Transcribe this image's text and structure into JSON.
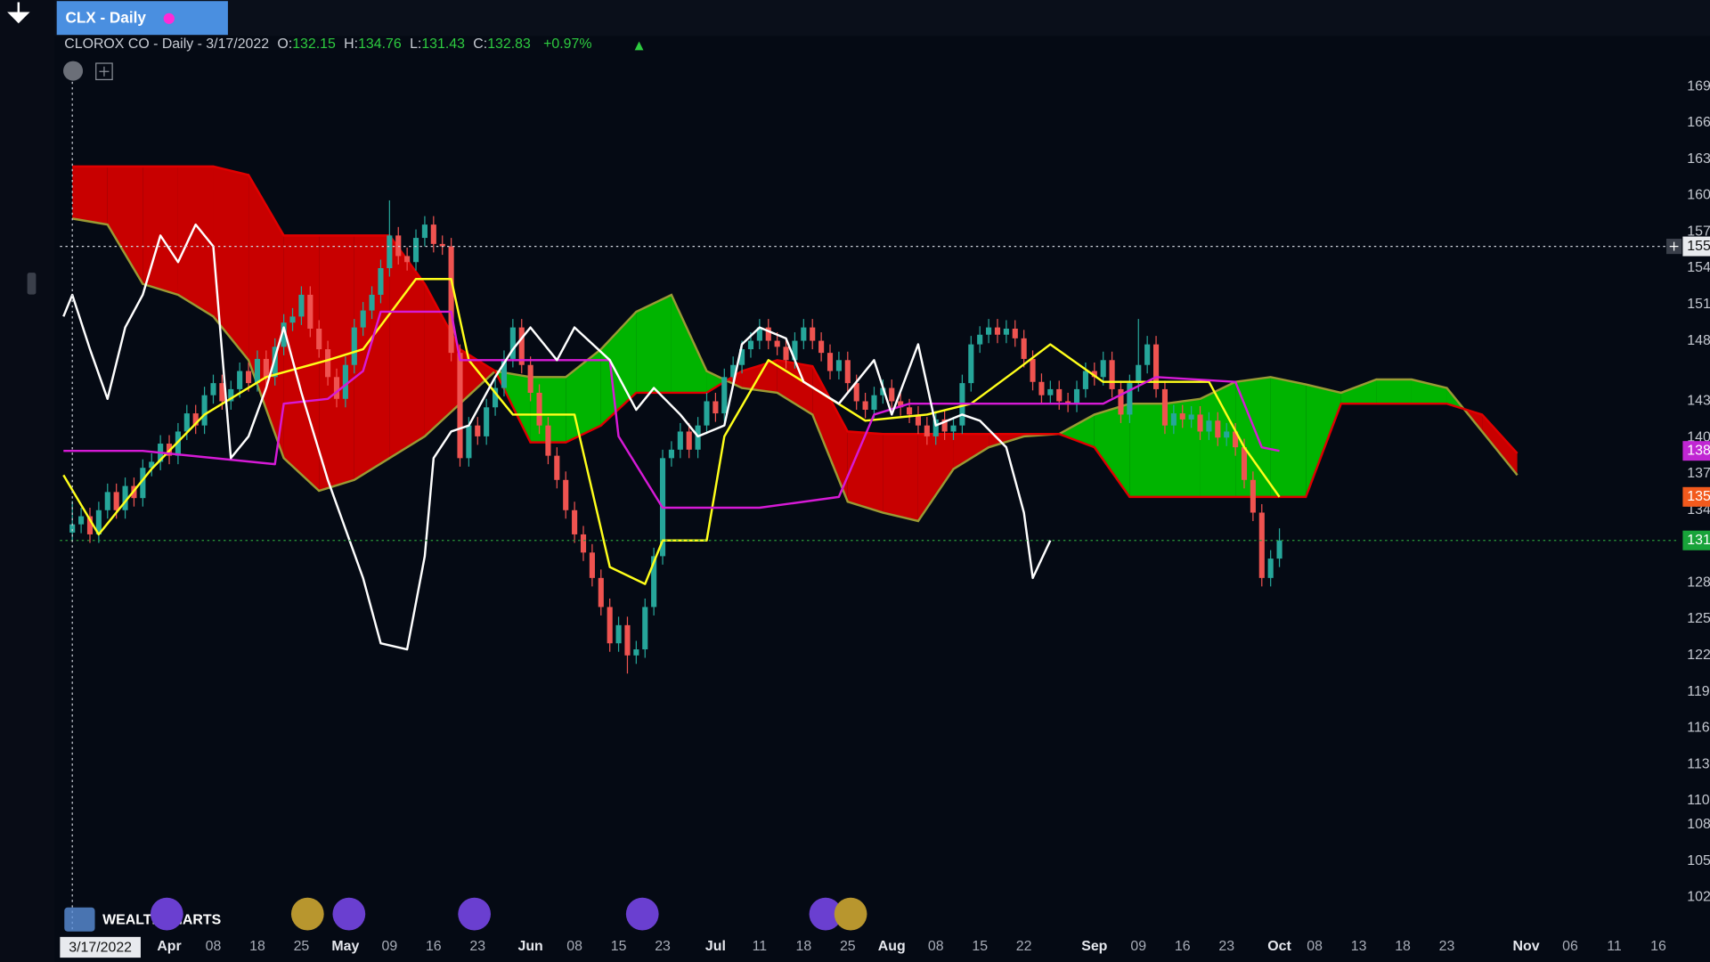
{
  "header": {
    "tab": "CLX - Daily",
    "legend": "CLOROX CO - Daily - 3/17/2022",
    "labels": [
      "O:",
      "H:",
      "L:",
      "C:"
    ],
    "change": "+0.97%",
    "watermark": "WEALTHCHARTS"
  },
  "chart_data": {
    "type": "candlestick",
    "xlim": [
      -1.4,
      182.4
    ],
    "ylim": [
      99.1,
      171.2
    ],
    "grid": false,
    "yticks": [
      102,
      105,
      108,
      110,
      113,
      116,
      119,
      122,
      125,
      128,
      134,
      137,
      140,
      143,
      148,
      151,
      154,
      157,
      160,
      163,
      166,
      169
    ],
    "xticks": [
      {
        "value": 11,
        "label": "Apr"
      },
      {
        "value": 16,
        "label": "08"
      },
      {
        "value": 21,
        "label": "18"
      },
      {
        "value": 26,
        "label": "25"
      },
      {
        "value": 31,
        "label": "May"
      },
      {
        "value": 36,
        "label": "09"
      },
      {
        "value": 41,
        "label": "16"
      },
      {
        "value": 46,
        "label": "23"
      },
      {
        "value": 52,
        "label": "Jun"
      },
      {
        "value": 57,
        "label": "08"
      },
      {
        "value": 62,
        "label": "15"
      },
      {
        "value": 67,
        "label": "23"
      },
      {
        "value": 73,
        "label": "Jul"
      },
      {
        "value": 78,
        "label": "11"
      },
      {
        "value": 83,
        "label": "18"
      },
      {
        "value": 88,
        "label": "25"
      },
      {
        "value": 93,
        "label": "Aug"
      },
      {
        "value": 98,
        "label": "08"
      },
      {
        "value": 103,
        "label": "15"
      },
      {
        "value": 108,
        "label": "22"
      },
      {
        "value": 116,
        "label": "Sep"
      },
      {
        "value": 121,
        "label": "09"
      },
      {
        "value": 126,
        "label": "16"
      },
      {
        "value": 131,
        "label": "23"
      },
      {
        "value": 137,
        "label": "Oct"
      },
      {
        "value": 141,
        "label": "08"
      },
      {
        "value": 146,
        "label": "13"
      },
      {
        "value": 151,
        "label": "18"
      },
      {
        "value": 156,
        "label": "23"
      },
      {
        "value": 165,
        "label": "Nov"
      },
      {
        "value": 170,
        "label": "06"
      },
      {
        "value": 175,
        "label": "11"
      },
      {
        "value": 180,
        "label": "16"
      }
    ],
    "crosshair": {
      "label": "3/17/2022",
      "x": 0,
      "value": 155.8
    },
    "candles": {
      "up_color": "#26a69a",
      "down_color": "#ef5350",
      "x": [
        0,
        1,
        2,
        3,
        4,
        5,
        6,
        7,
        8,
        9,
        10,
        11,
        12,
        13,
        14,
        15,
        16,
        17,
        18,
        19,
        20,
        21,
        22,
        23,
        24,
        25,
        26,
        27,
        28,
        29,
        30,
        31,
        32,
        33,
        34,
        35,
        36,
        37,
        38,
        39,
        40,
        41,
        42,
        43,
        44,
        45,
        46,
        47,
        48,
        49,
        50,
        51,
        52,
        53,
        54,
        55,
        56,
        57,
        58,
        59,
        60,
        61,
        62,
        63,
        64,
        65,
        66,
        67,
        68,
        69,
        70,
        71,
        72,
        73,
        74,
        75,
        76,
        77,
        78,
        79,
        80,
        81,
        82,
        83,
        84,
        85,
        86,
        87,
        88,
        89,
        90,
        91,
        92,
        93,
        94,
        95,
        96,
        97,
        98,
        99,
        100,
        101,
        102,
        103,
        104,
        105,
        106,
        107,
        108,
        109,
        110,
        111,
        112,
        113,
        114,
        115,
        116,
        117,
        118,
        119,
        120,
        121,
        122,
        123,
        124,
        125,
        126,
        127,
        128,
        129,
        130,
        131,
        132,
        133,
        134,
        135,
        136,
        137
      ],
      "open": [
        132.15,
        132.83,
        133.5,
        132.0,
        134.0,
        135.5,
        134.0,
        136.0,
        135.0,
        137.5,
        138.0,
        139.5,
        138.5,
        140.5,
        142.0,
        141.0,
        143.5,
        144.5,
        143.0,
        144.0,
        145.5,
        144.5,
        146.5,
        145.0,
        147.5,
        149.5,
        150.0,
        151.8,
        149.0,
        147.3,
        145.0,
        143.2,
        146.0,
        149.1,
        150.5,
        151.8,
        154.0,
        156.7,
        155.0,
        154.5,
        156.5,
        157.6,
        156.0,
        155.8,
        147.0,
        138.3,
        141.0,
        140.1,
        142.5,
        144.1,
        146.5,
        149.1,
        146.0,
        143.7,
        141.0,
        138.5,
        136.5,
        134.0,
        132.0,
        130.5,
        128.4,
        126.0,
        123.0,
        124.5,
        122.0,
        122.5,
        126.0,
        130.2,
        138.3,
        139.0,
        140.5,
        139.0,
        141.0,
        143.0,
        142.0,
        145.0,
        146.0,
        147.3,
        148.0,
        149.1,
        148.0,
        147.5,
        146.4,
        148.0,
        149.1,
        148.0,
        147.0,
        145.5,
        146.4,
        144.5,
        143.0,
        142.3,
        143.5,
        144.1,
        143.0,
        142.5,
        141.9,
        141.0,
        140.1,
        141.5,
        140.5,
        141.0,
        144.5,
        147.7,
        148.5,
        149.1,
        148.5,
        149.0,
        148.2,
        146.5,
        144.6,
        143.5,
        144.0,
        143.0,
        142.8,
        144.0,
        145.5,
        145.0,
        146.4,
        144.0,
        141.9,
        144.5,
        146.0,
        147.7,
        144.0,
        141.0,
        142.0,
        141.5,
        141.9,
        140.5,
        141.4,
        140.0,
        140.5,
        139.2,
        136.5,
        133.8,
        128.4,
        130.0
      ],
      "high": [
        134.76,
        134.2,
        134.2,
        134.7,
        136.2,
        136.2,
        136.7,
        136.7,
        138.2,
        138.7,
        140.2,
        140.2,
        141.2,
        142.7,
        142.7,
        144.2,
        145.2,
        145.2,
        144.7,
        146.2,
        146.2,
        147.2,
        147.2,
        148.2,
        150.2,
        150.7,
        152.5,
        152.5,
        149.7,
        148.0,
        145.7,
        146.7,
        149.8,
        151.2,
        152.5,
        154.7,
        159.6,
        157.4,
        155.7,
        157.2,
        158.3,
        158.3,
        156.7,
        156.5,
        147.7,
        141.7,
        141.7,
        143.2,
        144.8,
        147.2,
        149.8,
        149.8,
        146.7,
        144.4,
        141.7,
        139.2,
        137.2,
        134.7,
        132.7,
        131.2,
        129.1,
        126.7,
        125.2,
        125.2,
        123.2,
        126.7,
        130.9,
        139.0,
        139.7,
        141.2,
        141.2,
        141.7,
        143.7,
        143.7,
        145.7,
        146.7,
        148.0,
        148.7,
        149.8,
        149.8,
        148.7,
        148.2,
        148.7,
        149.8,
        149.8,
        148.7,
        147.7,
        147.1,
        147.1,
        145.2,
        143.7,
        144.2,
        144.8,
        144.8,
        143.7,
        143.2,
        142.6,
        141.7,
        142.2,
        142.2,
        141.7,
        145.2,
        148.4,
        149.2,
        149.8,
        149.8,
        149.7,
        149.7,
        148.9,
        147.2,
        145.3,
        144.7,
        144.7,
        143.7,
        144.7,
        146.2,
        146.2,
        147.1,
        147.1,
        144.7,
        145.2,
        149.8,
        148.4,
        148.4,
        144.7,
        142.7,
        142.7,
        142.6,
        142.6,
        142.1,
        142.1,
        141.2,
        141.2,
        139.9,
        137.2,
        134.5,
        130.7,
        132.5
      ],
      "low": [
        131.43,
        132.1,
        131.3,
        131.3,
        133.3,
        133.3,
        133.3,
        134.3,
        134.3,
        136.8,
        137.3,
        137.8,
        137.8,
        139.8,
        140.3,
        140.3,
        142.8,
        142.3,
        142.3,
        143.3,
        143.8,
        143.8,
        144.3,
        144.3,
        146.8,
        148.8,
        149.3,
        148.3,
        146.6,
        144.3,
        142.5,
        142.5,
        145.3,
        148.4,
        149.8,
        151.1,
        153.3,
        154.3,
        153.8,
        153.8,
        155.8,
        155.3,
        155.1,
        146.3,
        137.6,
        137.6,
        139.4,
        139.4,
        141.8,
        143.4,
        145.8,
        145.3,
        143.0,
        140.3,
        137.8,
        135.8,
        133.3,
        131.3,
        129.8,
        127.7,
        125.3,
        122.3,
        122.3,
        120.5,
        121.3,
        121.8,
        125.3,
        129.5,
        137.6,
        138.3,
        138.3,
        138.3,
        140.3,
        141.3,
        141.3,
        144.3,
        145.3,
        146.6,
        147.3,
        147.3,
        146.8,
        145.7,
        145.7,
        147.3,
        147.3,
        146.3,
        144.8,
        144.8,
        143.8,
        142.3,
        141.6,
        141.6,
        142.8,
        142.3,
        141.8,
        141.2,
        140.3,
        139.4,
        139.4,
        139.8,
        139.8,
        140.3,
        143.8,
        147.0,
        147.8,
        147.8,
        147.8,
        147.5,
        145.8,
        143.9,
        142.8,
        142.8,
        142.3,
        142.1,
        142.1,
        143.3,
        144.3,
        144.3,
        143.3,
        141.2,
        141.2,
        143.8,
        145.3,
        143.3,
        140.3,
        140.3,
        140.8,
        140.8,
        139.8,
        139.8,
        139.3,
        139.3,
        138.5,
        135.8,
        133.1,
        127.7,
        127.7,
        129.3
      ],
      "close": [
        132.83,
        133.5,
        132.0,
        134.0,
        135.5,
        134.0,
        136.0,
        135.0,
        137.5,
        138.0,
        139.5,
        138.5,
        140.5,
        142.0,
        141.0,
        143.5,
        144.5,
        143.0,
        144.0,
        145.5,
        144.5,
        146.5,
        145.0,
        147.5,
        149.5,
        150.0,
        151.8,
        149.0,
        147.3,
        145.0,
        143.2,
        146.0,
        149.1,
        150.5,
        151.8,
        154.0,
        156.7,
        155.0,
        154.5,
        156.5,
        157.6,
        156.0,
        155.8,
        147.0,
        138.3,
        141.0,
        140.1,
        142.5,
        144.1,
        146.5,
        149.1,
        146.0,
        143.7,
        141.0,
        138.5,
        136.5,
        134.0,
        132.0,
        130.5,
        128.4,
        126.0,
        123.0,
        124.5,
        122.0,
        122.5,
        126.0,
        130.2,
        138.3,
        139.0,
        140.5,
        139.0,
        141.0,
        143.0,
        142.0,
        145.0,
        146.0,
        147.3,
        148.0,
        149.1,
        148.0,
        147.5,
        146.4,
        148.0,
        149.1,
        148.0,
        147.0,
        145.5,
        146.4,
        144.5,
        143.0,
        142.3,
        143.5,
        144.1,
        143.0,
        142.5,
        141.9,
        141.0,
        140.1,
        141.5,
        140.5,
        141.0,
        144.5,
        147.7,
        148.5,
        149.1,
        148.5,
        149.0,
        148.2,
        146.5,
        144.6,
        143.5,
        144.0,
        143.0,
        142.8,
        144.0,
        145.5,
        145.0,
        146.4,
        144.0,
        141.9,
        144.5,
        146.0,
        147.7,
        144.0,
        141.0,
        142.0,
        141.5,
        141.9,
        140.5,
        141.4,
        140.0,
        140.5,
        139.2,
        136.5,
        133.8,
        128.4,
        130.0,
        131.5
      ]
    },
    "cloud": {
      "up_color": "#00b400",
      "down_color": "#c80000",
      "span_a_color": "#9a9a34",
      "span_b_color": "#e00000",
      "x": [
        0,
        4,
        8,
        12,
        16,
        20,
        24,
        28,
        32,
        36,
        40,
        44,
        48,
        52,
        56,
        60,
        64,
        68,
        72,
        76,
        80,
        84,
        88,
        92,
        96,
        100,
        104,
        108,
        112,
        116,
        120,
        124,
        128,
        132,
        136,
        140,
        144,
        148,
        152,
        156,
        160,
        164
      ],
      "span_a": [
        158.1,
        157.6,
        152.7,
        151.8,
        150.0,
        146.4,
        138.3,
        135.6,
        136.5,
        138.3,
        140.1,
        142.8,
        145.5,
        145.0,
        145.0,
        147.3,
        150.4,
        151.8,
        145.5,
        144.1,
        143.7,
        141.9,
        134.7,
        133.8,
        133.1,
        137.4,
        139.2,
        140.1,
        140.3,
        141.9,
        142.8,
        142.8,
        143.2,
        144.6,
        145.0,
        144.4,
        143.7,
        144.8,
        144.8,
        144.1,
        140.5,
        136.9
      ],
      "span_b": [
        162.4,
        162.4,
        162.4,
        162.4,
        162.4,
        161.7,
        156.7,
        156.7,
        156.7,
        156.7,
        152.7,
        147.3,
        145.5,
        139.6,
        139.6,
        141.0,
        143.7,
        143.7,
        143.7,
        145.5,
        146.4,
        145.9,
        140.5,
        140.3,
        140.3,
        140.3,
        140.3,
        140.3,
        140.3,
        139.2,
        135.1,
        135.1,
        135.1,
        135.1,
        135.1,
        135.1,
        142.8,
        142.8,
        142.8,
        142.8,
        141.9,
        138.7
      ]
    },
    "lines": [
      {
        "color": "#ffff1a",
        "x": [
          -1,
          3,
          9,
          15,
          22,
          29,
          33,
          39,
          43,
          45,
          50,
          57,
          61,
          65,
          67,
          72,
          74,
          79,
          83,
          90,
          97,
          102,
          107,
          111,
          117,
          123,
          129,
          133,
          137
        ],
        "values": [
          136.9,
          132.0,
          137.4,
          141.9,
          145.0,
          146.4,
          147.3,
          153.1,
          153.1,
          146.4,
          141.9,
          141.9,
          129.3,
          127.9,
          131.5,
          131.5,
          140.1,
          146.4,
          144.6,
          141.4,
          141.9,
          142.8,
          145.5,
          147.7,
          144.6,
          144.6,
          144.6,
          139.2,
          135.1
        ]
      },
      {
        "color": "#d61ad6",
        "x": [
          -1,
          8,
          23,
          24,
          29,
          33,
          35,
          43,
          44,
          61,
          62,
          67,
          78,
          87,
          91,
          95,
          117,
          123,
          132,
          135,
          137
        ],
        "values": [
          138.9,
          138.9,
          137.8,
          142.8,
          143.2,
          145.5,
          150.4,
          150.4,
          146.4,
          146.4,
          140.1,
          134.2,
          134.2,
          135.1,
          141.9,
          142.8,
          142.8,
          145.0,
          144.6,
          139.2,
          138.9
        ]
      },
      {
        "color": "#ffffff",
        "x": [
          -1,
          0,
          2,
          4,
          6,
          8,
          10,
          12,
          14,
          16,
          18,
          20,
          22,
          24,
          26,
          29,
          33,
          35,
          38,
          40,
          41,
          43,
          45,
          48,
          50,
          52,
          55,
          57,
          61,
          64,
          66,
          69,
          71,
          74,
          76,
          78,
          81,
          83,
          87,
          91,
          93,
          96,
          98,
          101,
          103,
          106,
          108,
          109,
          111
        ],
        "values": [
          150.0,
          151.8,
          147.3,
          143.2,
          149.1,
          151.8,
          156.7,
          154.5,
          157.6,
          155.8,
          138.3,
          140.1,
          144.1,
          149.1,
          143.7,
          136.5,
          128.4,
          123.0,
          122.5,
          130.2,
          138.3,
          140.5,
          141.0,
          145.0,
          147.3,
          149.1,
          146.4,
          149.1,
          146.4,
          142.3,
          144.1,
          141.9,
          140.1,
          141.0,
          147.7,
          149.1,
          148.2,
          144.6,
          142.8,
          146.4,
          141.9,
          147.7,
          141.0,
          141.9,
          141.4,
          139.2,
          133.8,
          128.4,
          131.5
        ]
      }
    ]
  }
}
